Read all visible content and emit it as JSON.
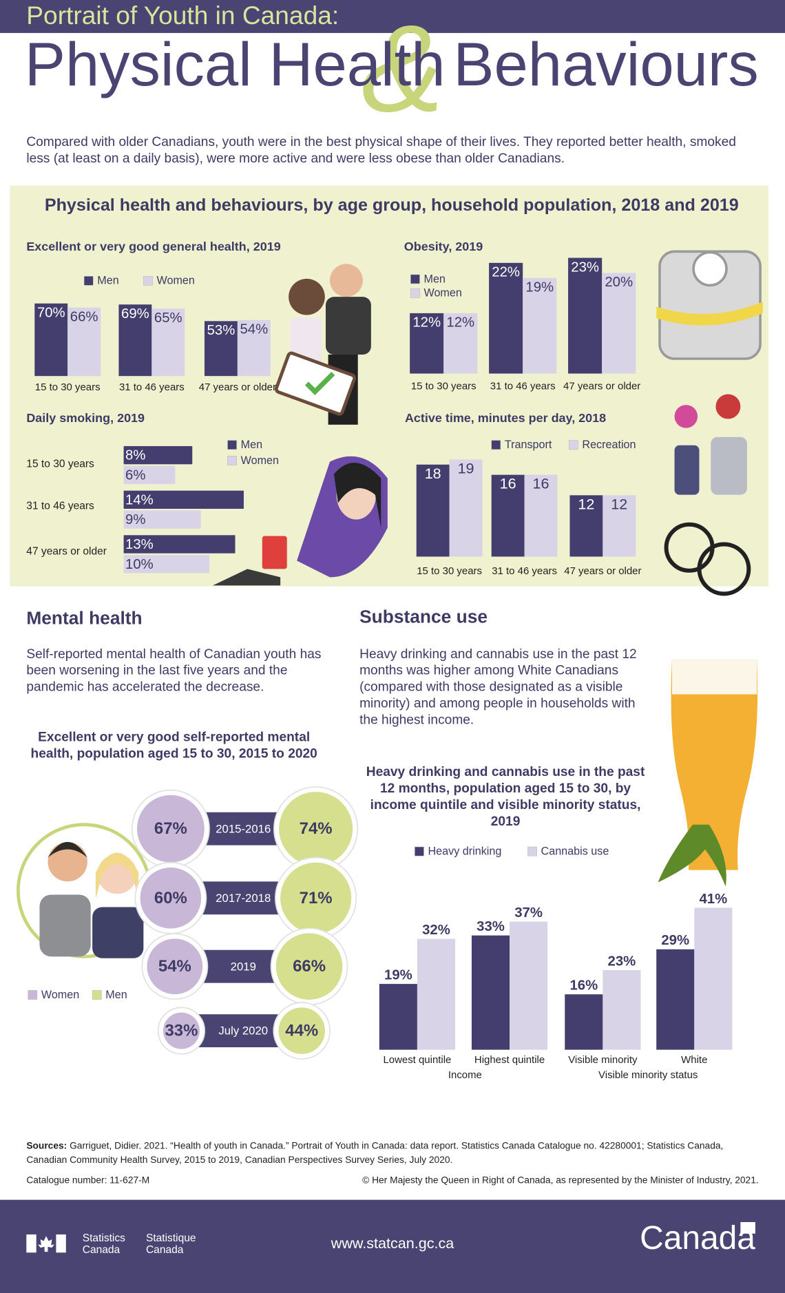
{
  "header": {
    "kicker": "Portrait of Youth in Canada:",
    "title_part1": "Physical Health",
    "ampersand": "&",
    "title_part2": "Behaviours"
  },
  "intro": "Compared with older Canadians, youth were in the best physical shape of their lives. They reported better health, smoked less (at least on a daily basis), were more active and were less obese than older Canadians.",
  "panel_title": "Physical health and behaviours, by age group, household population, 2018 and 2019",
  "chart_data": [
    {
      "type": "bar",
      "title": "Excellent or very good general health, 2019",
      "categories": [
        "15 to 30 years",
        "31 to 46 years",
        "47 years or older"
      ],
      "series": [
        {
          "name": "Men",
          "color": "#433e6e",
          "values": [
            70,
            69,
            53
          ],
          "value_labels": [
            "70%",
            "69%",
            "53%"
          ]
        },
        {
          "name": "Women",
          "color": "#d8d3e6",
          "values": [
            66,
            65,
            54
          ],
          "value_labels": [
            "66%",
            "65%",
            "54%"
          ]
        }
      ]
    },
    {
      "type": "bar",
      "title": "Obesity, 2019",
      "categories": [
        "15 to 30 years",
        "31 to 46 years",
        "47 years or older"
      ],
      "series": [
        {
          "name": "Men",
          "color": "#433e6e",
          "values": [
            12,
            22,
            23
          ],
          "value_labels": [
            "12%",
            "22%",
            "23%"
          ]
        },
        {
          "name": "Women",
          "color": "#d8d3e6",
          "values": [
            12,
            19,
            20
          ],
          "value_labels": [
            "12%",
            "19%",
            "20%"
          ]
        }
      ]
    },
    {
      "type": "barh",
      "title": "Daily smoking, 2019",
      "categories": [
        "15 to 30 years",
        "31 to 46 years",
        "47 years or older"
      ],
      "series": [
        {
          "name": "Men",
          "color": "#433e6e",
          "values": [
            8,
            14,
            13
          ],
          "value_labels": [
            "8%",
            "14%",
            "13%"
          ]
        },
        {
          "name": "Women",
          "color": "#d8d3e6",
          "values": [
            6,
            9,
            10
          ],
          "value_labels": [
            "6%",
            "9%",
            "10%"
          ]
        }
      ]
    },
    {
      "type": "bar",
      "title": "Active time, minutes per day, 2018",
      "categories": [
        "15 to 30 years",
        "31 to 46 years",
        "47 years or older"
      ],
      "series": [
        {
          "name": "Transport",
          "color": "#433e6e",
          "values": [
            18,
            16,
            12
          ]
        },
        {
          "name": "Recreation",
          "color": "#d8d3e6",
          "values": [
            19,
            16,
            12
          ]
        }
      ]
    },
    {
      "type": "bubble",
      "title": "Excellent or very good self-reported mental health, population aged 15 to 30, 2015 to 2020",
      "categories": [
        "2015-2016",
        "2017-2018",
        "2019",
        "July 2020"
      ],
      "series": [
        {
          "name": "Women",
          "color": "#c9b7d8",
          "values": [
            67,
            60,
            54,
            33
          ],
          "value_labels": [
            "67%",
            "60%",
            "54%",
            "33%"
          ]
        },
        {
          "name": "Men",
          "color": "#d5df8e",
          "values": [
            74,
            71,
            66,
            44
          ],
          "value_labels": [
            "74%",
            "71%",
            "66%",
            "44%"
          ]
        }
      ]
    },
    {
      "type": "bar",
      "title": "Heavy drinking and cannabis use in the past 12 months, population aged 15 to 30, by income quintile and visible minority status, 2019",
      "categories": [
        "Lowest quintile",
        "Highest quintile",
        "Visible minority",
        "White"
      ],
      "group_labels": [
        "Income",
        "Visible minority status"
      ],
      "series": [
        {
          "name": "Heavy drinking",
          "color": "#433e6e",
          "values": [
            19,
            33,
            16,
            29
          ],
          "value_labels": [
            "19%",
            "33%",
            "16%",
            "29%"
          ]
        },
        {
          "name": "Cannabis use",
          "color": "#d8d3e6",
          "values": [
            32,
            37,
            23,
            41
          ],
          "value_labels": [
            "32%",
            "37%",
            "23%",
            "41%"
          ]
        }
      ]
    }
  ],
  "mental_health": {
    "heading": "Mental health",
    "text": "Self-reported mental health of Canadian youth has been worsening in the last five years and the pandemic has accelerated the decrease."
  },
  "substance_use": {
    "heading": "Substance use",
    "text": "Heavy drinking and cannabis use in the past 12 months was higher among White Canadians (compared with those designated as a visible minority) and among people in households with the highest income."
  },
  "sources": {
    "label": "Sources:",
    "text": "Garriguet, Didier. 2021. “Health of youth in Canada.” Portrait of Youth in Canada: data report. Statistics Canada Catalogue no. 42280001; Statistics Canada, Canadian Community Health Survey, 2015 to 2019, Canadian Perspectives Survey Series, July 2020."
  },
  "catalogue": "Catalogue number: 11-627-M",
  "copyright": "© Her Majesty the Queen in Right of Canada, as represented by the Minister of Industry, 2021.",
  "footer": {
    "statistics": [
      "Statistics",
      "Canada"
    ],
    "statistique": [
      "Statistique",
      "Canada"
    ],
    "url": "www.statcan.gc.ca",
    "wordmark": "Canada"
  }
}
